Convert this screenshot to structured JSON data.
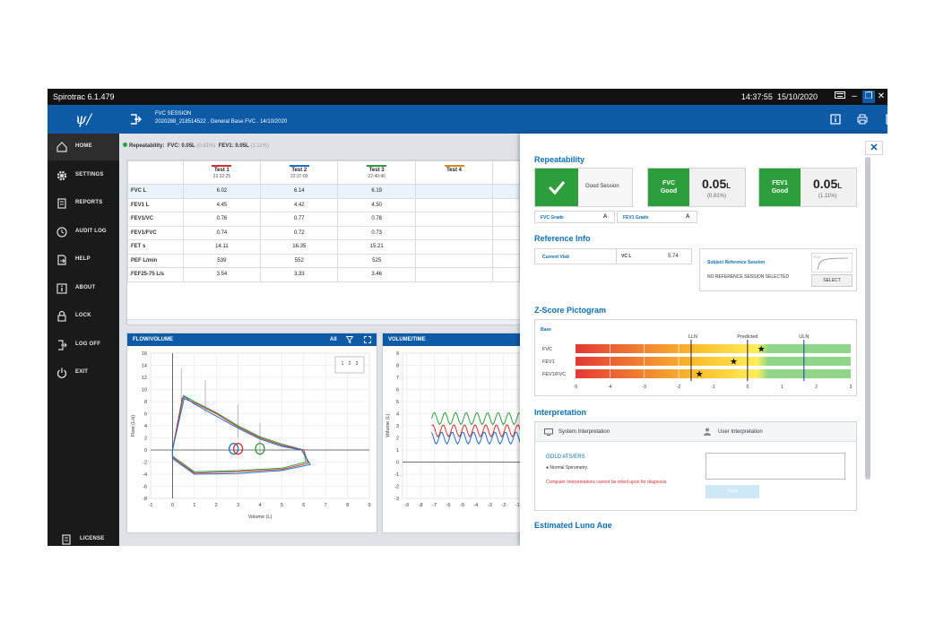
{
  "titlebar": {
    "title": "Spirotrac 6.1.479",
    "time": "14:37:55",
    "date": "15/10/2020"
  },
  "sidebar": {
    "items": [
      {
        "label": "HOME",
        "icon": "home-icon"
      },
      {
        "label": "SETTINGS",
        "icon": "gear-icon"
      },
      {
        "label": "REPORTS",
        "icon": "reports-icon"
      },
      {
        "label": "AUDIT LOG",
        "icon": "clock-icon"
      },
      {
        "label": "HELP",
        "icon": "help-icon"
      },
      {
        "label": "ABOUT",
        "icon": "info-icon"
      },
      {
        "label": "LOCK",
        "icon": "lock-icon"
      },
      {
        "label": "LOG OFF",
        "icon": "logoff-icon"
      },
      {
        "label": "EXIT",
        "icon": "power-icon"
      }
    ],
    "license": "LICENSE"
  },
  "session": {
    "title": "FVC SESSION",
    "line2": "2020288_218514522 . General Base FVC . 14/10/2020"
  },
  "repeatability_bar": {
    "label": "Repeatability:",
    "fvc": "FVC: 0.05L",
    "fvc_pct": "(0.81%)",
    "fev1": "FEV1: 0.05L",
    "fev1_pct": "(1.11%)"
  },
  "table": {
    "tests": [
      {
        "name": "Test 1",
        "time": "22:32:25",
        "color": "#d32f2f"
      },
      {
        "name": "Test 2",
        "time": "22:37:09",
        "color": "#1e6fd0"
      },
      {
        "name": "Test 3",
        "time": "22:40:46",
        "color": "#2e9e3c"
      },
      {
        "name": "Test 4",
        "time": "",
        "color": "#e08a1e"
      }
    ],
    "rows": [
      {
        "label": "FVC L",
        "values": [
          "6.02",
          "6.14",
          "6.19",
          ""
        ]
      },
      {
        "label": "FEV1 L",
        "values": [
          "4.45",
          "4.42",
          "4.50",
          ""
        ]
      },
      {
        "label": "FEV1/VC",
        "values": [
          "0.76",
          "0.77",
          "0.78",
          ""
        ]
      },
      {
        "label": "FEV1/FVC",
        "values": [
          "0.74",
          "0.72",
          "0.73",
          ""
        ]
      },
      {
        "label": "FET s",
        "values": [
          "14.11",
          "16.35",
          "15.21",
          ""
        ]
      },
      {
        "label": "PEF L/min",
        "values": [
          "539",
          "552",
          "525",
          ""
        ]
      },
      {
        "label": "FEF25-75 L/s",
        "values": [
          "3.54",
          "3.33",
          "3.46",
          ""
        ]
      }
    ]
  },
  "flow_volume": {
    "title": "FLOW/VOLUME",
    "all": "All",
    "ylabel": "Flow (L/s)",
    "xlabel": "Volume (L)",
    "yticks": [
      "16",
      "14",
      "12",
      "10",
      "8",
      "6",
      "4",
      "2",
      "0",
      "-2",
      "-4",
      "-6",
      "-8"
    ],
    "xticks": [
      "-1",
      "0",
      "1",
      "2",
      "3",
      "4",
      "5",
      "6",
      "7",
      "8",
      "9"
    ],
    "legend": [
      "1",
      "2",
      "3"
    ]
  },
  "volume_time": {
    "title": "VOLUME/TIME",
    "ylabel": "Volume (L)",
    "yticks": [
      "9",
      "8",
      "7",
      "6",
      "5",
      "4",
      "3",
      "2",
      "1",
      "0",
      "-1",
      "-2",
      "-3"
    ],
    "xticks": [
      "-9",
      "-8",
      "-7",
      "-6",
      "-5",
      "-4",
      "-3",
      "-2",
      "-1"
    ]
  },
  "right": {
    "repeatability": {
      "heading": "Repeatability",
      "status": "Good Session",
      "fvc_label": "FVC",
      "fvc_good": "Good",
      "fvc_val": "0.05",
      "fvc_unit": "L",
      "fvc_pct": "(0.81%)",
      "fev1_label": "FEV1",
      "fev1_good": "Good",
      "fev1_val": "0.05",
      "fev1_unit": "L",
      "fev1_pct": "(1.11%)",
      "fvc_grade_label": "FVC Grade",
      "fvc_grade": "A",
      "fev1_grade_label": "FEV1 Grade",
      "fev1_grade": "A"
    },
    "reference": {
      "heading": "Reference Info",
      "current_visit": "Current Visit",
      "vc_label": "VC L",
      "vc_value": "5.74",
      "subject_ref": "Subject Reference Session",
      "no_ref": "NO REFERENCE SESSION SELECTED",
      "select": "SELECT",
      "thumb_label": "FVC"
    },
    "zscore": {
      "heading": "Z-Score Pictogram",
      "base": "Base",
      "lln": "LLN",
      "predicted": "Predicted",
      "uln": "ULN",
      "rows": [
        {
          "label": "FVC",
          "star": 0.4
        },
        {
          "label": "FEV1",
          "star": -0.4
        },
        {
          "label": "FEV1/FVC",
          "star": -1.4
        }
      ],
      "ticks": [
        "-5",
        "-4",
        "-3",
        "-2",
        "-1",
        "0",
        "1",
        "2",
        "3"
      ],
      "lln_value": -1.64,
      "uln_value": 1.64
    },
    "interpretation": {
      "heading": "Interpretation",
      "system": "System Interpretation",
      "user": "User Interpretation",
      "gold": "GOLD ATS/ERS",
      "result": "Normal Spirometry.",
      "warning": "Computer interpretations cannot be relied upon for diagnosis.",
      "save": "Save"
    },
    "lung_age": {
      "heading": "Estimated Lung Age"
    }
  },
  "colors": {
    "accent": "#0d5aa7",
    "good": "#2e9e3c",
    "test1": "#d32f2f",
    "test2": "#1e6fd0",
    "test3": "#2e9e3c"
  }
}
